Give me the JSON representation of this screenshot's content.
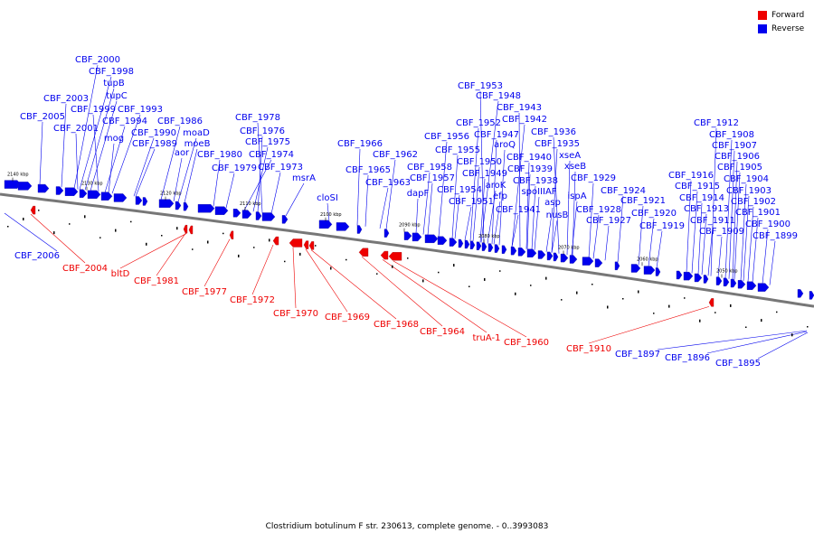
{
  "caption": "Clostridium botulinum F str. 230613, complete genome. - 0..3993083",
  "legend": [
    {
      "label": "Forward",
      "color": "#ee0000"
    },
    {
      "label": "Reverse",
      "color": "#0000ee"
    }
  ],
  "colors": {
    "forward": "#ee0000",
    "reverse": "#0000ee",
    "backbone": "#777777"
  },
  "ticks": [
    "2140 kbp",
    "2130 kbp",
    "2120 kbp",
    "2110 kbp",
    "2100 kbp",
    "2090 kbp",
    "2080 kbp",
    "2070 kbp",
    "2060 kbp",
    "2050 kbp"
  ],
  "reverse_labels": [
    "CBF_2000",
    "CBF_1998",
    "tupB",
    "tupC",
    "CBF_2003",
    "CBF_1999",
    "CBF_1993",
    "CBF_2005",
    "CBF_1994",
    "CBF_1986",
    "CBF_2001",
    "CBF_1990",
    "moaD",
    "mog",
    "CBF_1989",
    "moeB",
    "aor",
    "CBF_1980",
    "CBF_1979",
    "CBF_1978",
    "CBF_1976",
    "CBF_1975",
    "CBF_1974",
    "CBF_1973",
    "msrA",
    "CBF_1966",
    "CBF_1962",
    "CBF_1965",
    "CBF_1963",
    "cloSI",
    "CBF_1953",
    "CBF_1948",
    "CBF_1943",
    "CBF_1952",
    "CBF_1942",
    "CBF_1947",
    "CBF_1936",
    "CBF_1956",
    "CBF_1935",
    "aroQ",
    "CBF_1955",
    "CBF_1940",
    "xseA",
    "CBF_1950",
    "CBF_1958",
    "CBF_1939",
    "xseB",
    "CBF_1949",
    "CBF_1957",
    "aroK",
    "CBF_1938",
    "CBF_1929",
    "dapF",
    "CBF_1954",
    "spoIIIAF",
    "CBF_1924",
    "efp",
    "ispA",
    "CBF_1951",
    "asp",
    "CBF_1941",
    "CBF_1928",
    "nusB",
    "CBF_1927",
    "CBF_1921",
    "CBF_1920",
    "CBF_1919",
    "CBF_1912",
    "CBF_1908",
    "CBF_1907",
    "CBF_1906",
    "CBF_1916",
    "CBF_1905",
    "CBF_1915",
    "CBF_1904",
    "CBF_1914",
    "CBF_1903",
    "CBF_1913",
    "CBF_1902",
    "CBF_1911",
    "CBF_1901",
    "CBF_1909",
    "CBF_1900",
    "CBF_1899",
    "CBF_2006",
    "CBF_1897",
    "CBF_1896",
    "CBF_1895"
  ],
  "forward_labels": [
    "CBF_2004",
    "bltD",
    "CBF_1981",
    "CBF_1977",
    "CBF_1972",
    "CBF_1970",
    "CBF_1969",
    "CBF_1968",
    "CBF_1964",
    "truA-1",
    "CBF_1960",
    "CBF_1910"
  ]
}
